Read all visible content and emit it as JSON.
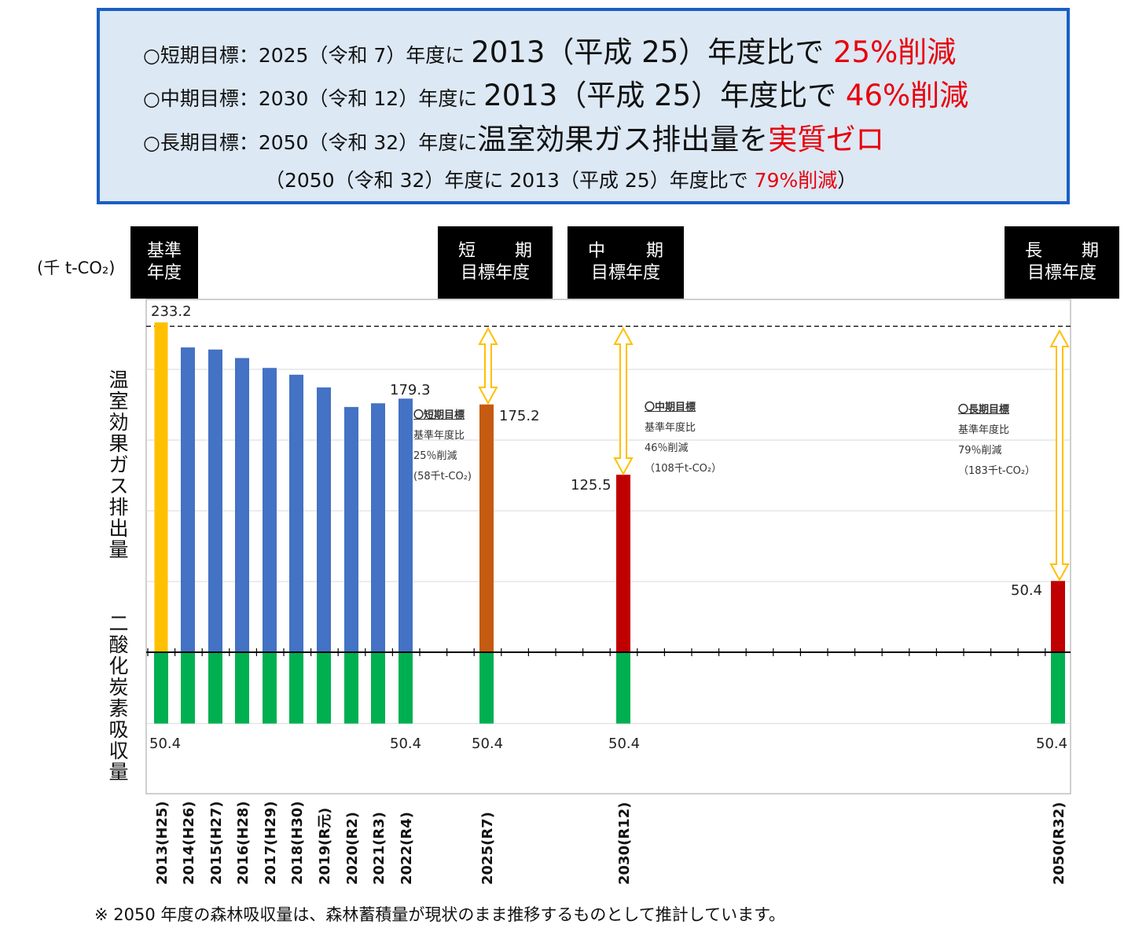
{
  "goals": {
    "short": {
      "a": "○短期目標：2025（令和 7）年度に ",
      "b": "2013（平成 25）年度比で ",
      "c": "25%削減"
    },
    "mid": {
      "a": "○中期目標：2030（令和 12）年度に ",
      "b": "2013（平成 25）年度比で ",
      "c": "46%削減"
    },
    "long": {
      "a": "○長期目標：2050（令和 32）年度に",
      "b": "温室効果ガス排出量を",
      "c": "実質ゼロ"
    },
    "long_note": {
      "a": "（2050（令和 32）年度に 2013（平成 25）年度比で ",
      "b": "79%削減",
      "c": "）"
    }
  },
  "headers": {
    "base": {
      "l1": "基準",
      "l2": "年度"
    },
    "short": {
      "l1a": "短",
      "l1b": "期",
      "l2": "目標年度"
    },
    "mid": {
      "l1a": "中",
      "l1b": "期",
      "l2": "目標年度"
    },
    "long": {
      "l1a": "長",
      "l1b": "期",
      "l2": "目標年度"
    }
  },
  "unit_label": "(千 t-CO₂)",
  "y_label_top": [
    "温",
    "室",
    "効",
    "果",
    "ガ",
    "ス",
    "排",
    "出",
    "量"
  ],
  "y_label_bottom": [
    "二",
    "酸",
    "化",
    "炭",
    "素",
    "吸",
    "収",
    "量"
  ],
  "notes": {
    "short": {
      "title": "〇短期目標",
      "l1": "基準年度比",
      "l2": "25％削減",
      "l3": "(58千t-CO₂)"
    },
    "mid": {
      "title": "〇中期目標",
      "l1": "基準年度比",
      "l2": "46％削減",
      "l3": "（108千t-CO₂）"
    },
    "long": {
      "title": "〇長期目標",
      "l1": "基準年度比",
      "l2": "79％削減",
      "l3": "（183千t-CO₂）"
    }
  },
  "footnote": "※  2050 年度の森林吸収量は、森林蓄積量が現状のまま推移するものとして推計しています。",
  "colors": {
    "base": "#ffc000",
    "actual": "#4472c4",
    "short_target": "#c55a11",
    "target": "#c00000",
    "absorption": "#00b050",
    "arrow": "#ffc000",
    "box_border": "#1a5ec4",
    "box_fill": "#dce8f4"
  },
  "chart_data": {
    "type": "bar",
    "categories": [
      "2013(H25)",
      "2014(H26)",
      "2015(H27)",
      "2016(H28)",
      "2017(H29)",
      "2018(H30)",
      "2019(R元)",
      "2020(R2)",
      "2021(R3)",
      "2022(R4)",
      "2025(R7)",
      "2030(R12)",
      "2050(R32)"
    ],
    "ylabel": "(千 t-CO₂)",
    "series": [
      {
        "values": [
          233.2,
          215.5,
          214.0,
          208.0,
          201.0,
          196.2,
          187.2,
          173.4,
          176.0,
          179.3,
          175.2,
          125.5,
          50.4
        ]
      },
      {
        "values": [
          -50.4,
          -50.4,
          -50.4,
          -50.4,
          -50.4,
          -50.4,
          -50.4,
          -50.4,
          -50.4,
          -50.4,
          -50.4,
          -50.4,
          -50.4
        ]
      }
    ],
    "data_labels": [
      {
        "category": "2013(H25)",
        "text": "233.2"
      },
      {
        "category": "2022(R4)",
        "text": "179.3"
      },
      {
        "category": "2025(R7)",
        "text": "175.2"
      },
      {
        "category": "2030(R12)",
        "text": "125.5"
      },
      {
        "category": "2050(R32)",
        "text": "50.4"
      }
    ],
    "absorption_labels": [
      {
        "category": "2013(H25)",
        "text": "50.4"
      },
      {
        "category": "2022(R4)",
        "text": "50.4"
      },
      {
        "category": "2025(R7)",
        "text": "50.4"
      },
      {
        "category": "2030(R12)",
        "text": "50.4"
      },
      {
        "category": "2050(R32)",
        "text": "50.4"
      }
    ],
    "ylim": [
      -100,
      250
    ],
    "grid": true
  }
}
